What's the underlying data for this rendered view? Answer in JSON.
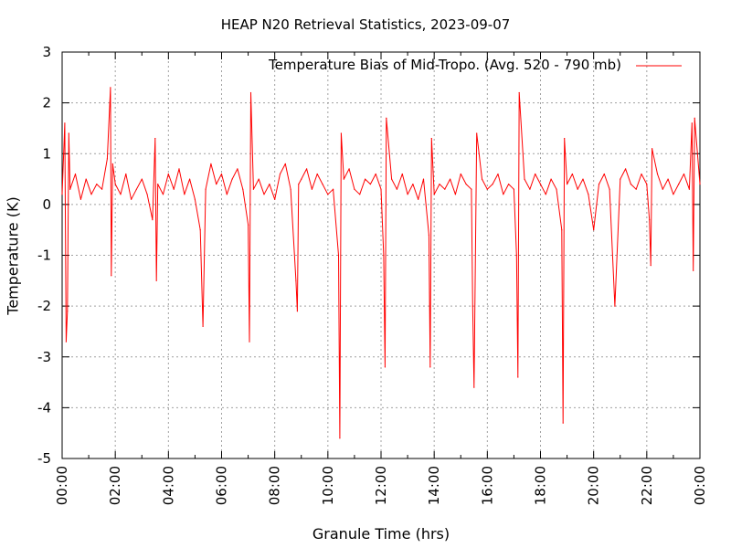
{
  "chart_data": {
    "type": "line",
    "title": "HEAP N20 Retrieval Statistics, 2023-09-07",
    "xlabel": "Granule Time (hrs)",
    "ylabel": "Temperature (K)",
    "xlim": [
      0,
      24
    ],
    "ylim": [
      -5,
      3
    ],
    "x_ticks": [
      "00:00",
      "02:00",
      "04:00",
      "06:00",
      "08:00",
      "10:00",
      "12:00",
      "14:00",
      "16:00",
      "18:00",
      "20:00",
      "22:00",
      "00:00"
    ],
    "y_ticks": [
      "3",
      "2",
      "1",
      "0",
      "-1",
      "-2",
      "-3",
      "-4",
      "-5"
    ],
    "grid": true,
    "legend_position": "top-right",
    "series": [
      {
        "name": "Temperature Bias of Mid-Tropo. (Avg. 520 - 790 mb)",
        "color": "#ff0000",
        "x": [
          0.0,
          0.1,
          0.15,
          0.2,
          0.25,
          0.3,
          0.5,
          0.7,
          0.9,
          1.1,
          1.3,
          1.5,
          1.7,
          1.82,
          1.85,
          1.9,
          2.0,
          2.2,
          2.4,
          2.6,
          2.8,
          3.0,
          3.2,
          3.4,
          3.5,
          3.55,
          3.6,
          3.8,
          4.0,
          4.2,
          4.4,
          4.6,
          4.8,
          5.0,
          5.2,
          5.3,
          5.4,
          5.6,
          5.8,
          6.0,
          6.2,
          6.4,
          6.6,
          6.8,
          7.0,
          7.05,
          7.1,
          7.2,
          7.4,
          7.6,
          7.8,
          8.0,
          8.2,
          8.4,
          8.6,
          8.8,
          8.85,
          8.9,
          9.0,
          9.2,
          9.4,
          9.6,
          9.8,
          10.0,
          10.2,
          10.4,
          10.45,
          10.5,
          10.6,
          10.8,
          11.0,
          11.2,
          11.4,
          11.6,
          11.8,
          12.0,
          12.1,
          12.15,
          12.2,
          12.4,
          12.6,
          12.8,
          13.0,
          13.2,
          13.4,
          13.6,
          13.8,
          13.85,
          13.9,
          14.0,
          14.2,
          14.4,
          14.6,
          14.8,
          15.0,
          15.2,
          15.4,
          15.45,
          15.5,
          15.6,
          15.8,
          16.0,
          16.2,
          16.4,
          16.6,
          16.8,
          17.0,
          17.1,
          17.15,
          17.2,
          17.4,
          17.6,
          17.8,
          18.0,
          18.2,
          18.4,
          18.6,
          18.8,
          18.85,
          18.9,
          19.0,
          19.2,
          19.4,
          19.6,
          19.8,
          20.0,
          20.2,
          20.4,
          20.6,
          20.8,
          21.0,
          21.2,
          21.4,
          21.6,
          21.8,
          22.0,
          22.1,
          22.15,
          22.2,
          22.4,
          22.6,
          22.8,
          23.0,
          23.2,
          23.4,
          23.6,
          23.7,
          23.75,
          23.8,
          24.0
        ],
        "y": [
          0.2,
          1.6,
          -2.7,
          -2.1,
          1.4,
          0.3,
          0.6,
          0.1,
          0.5,
          0.2,
          0.4,
          0.3,
          0.9,
          2.3,
          -1.4,
          0.8,
          0.4,
          0.2,
          0.6,
          0.1,
          0.3,
          0.5,
          0.2,
          -0.3,
          1.3,
          -1.5,
          0.4,
          0.2,
          0.6,
          0.3,
          0.7,
          0.2,
          0.5,
          0.1,
          -0.5,
          -2.4,
          0.3,
          0.8,
          0.4,
          0.6,
          0.2,
          0.5,
          0.7,
          0.3,
          -0.4,
          -2.7,
          2.2,
          0.3,
          0.5,
          0.2,
          0.4,
          0.1,
          0.6,
          0.8,
          0.3,
          -1.5,
          -2.1,
          0.4,
          0.5,
          0.7,
          0.3,
          0.6,
          0.4,
          0.2,
          0.3,
          -1.0,
          -4.6,
          1.4,
          0.5,
          0.7,
          0.3,
          0.2,
          0.5,
          0.4,
          0.6,
          0.3,
          -1.0,
          -3.2,
          1.7,
          0.5,
          0.3,
          0.6,
          0.2,
          0.4,
          0.1,
          0.5,
          -0.6,
          -3.2,
          1.3,
          0.2,
          0.4,
          0.3,
          0.5,
          0.2,
          0.6,
          0.4,
          0.3,
          -2.0,
          -3.6,
          1.4,
          0.5,
          0.3,
          0.4,
          0.6,
          0.2,
          0.4,
          0.3,
          -1.0,
          -3.4,
          2.2,
          0.5,
          0.3,
          0.6,
          0.4,
          0.2,
          0.5,
          0.3,
          -0.5,
          -4.3,
          1.3,
          0.4,
          0.6,
          0.3,
          0.5,
          0.2,
          -0.5,
          0.4,
          0.6,
          0.3,
          -2.0,
          0.5,
          0.7,
          0.4,
          0.3,
          0.6,
          0.4,
          -0.3,
          -1.2,
          1.1,
          0.6,
          0.3,
          0.5,
          0.2,
          0.4,
          0.6,
          0.3,
          1.6,
          -1.3,
          1.7,
          0.4
        ]
      }
    ]
  }
}
